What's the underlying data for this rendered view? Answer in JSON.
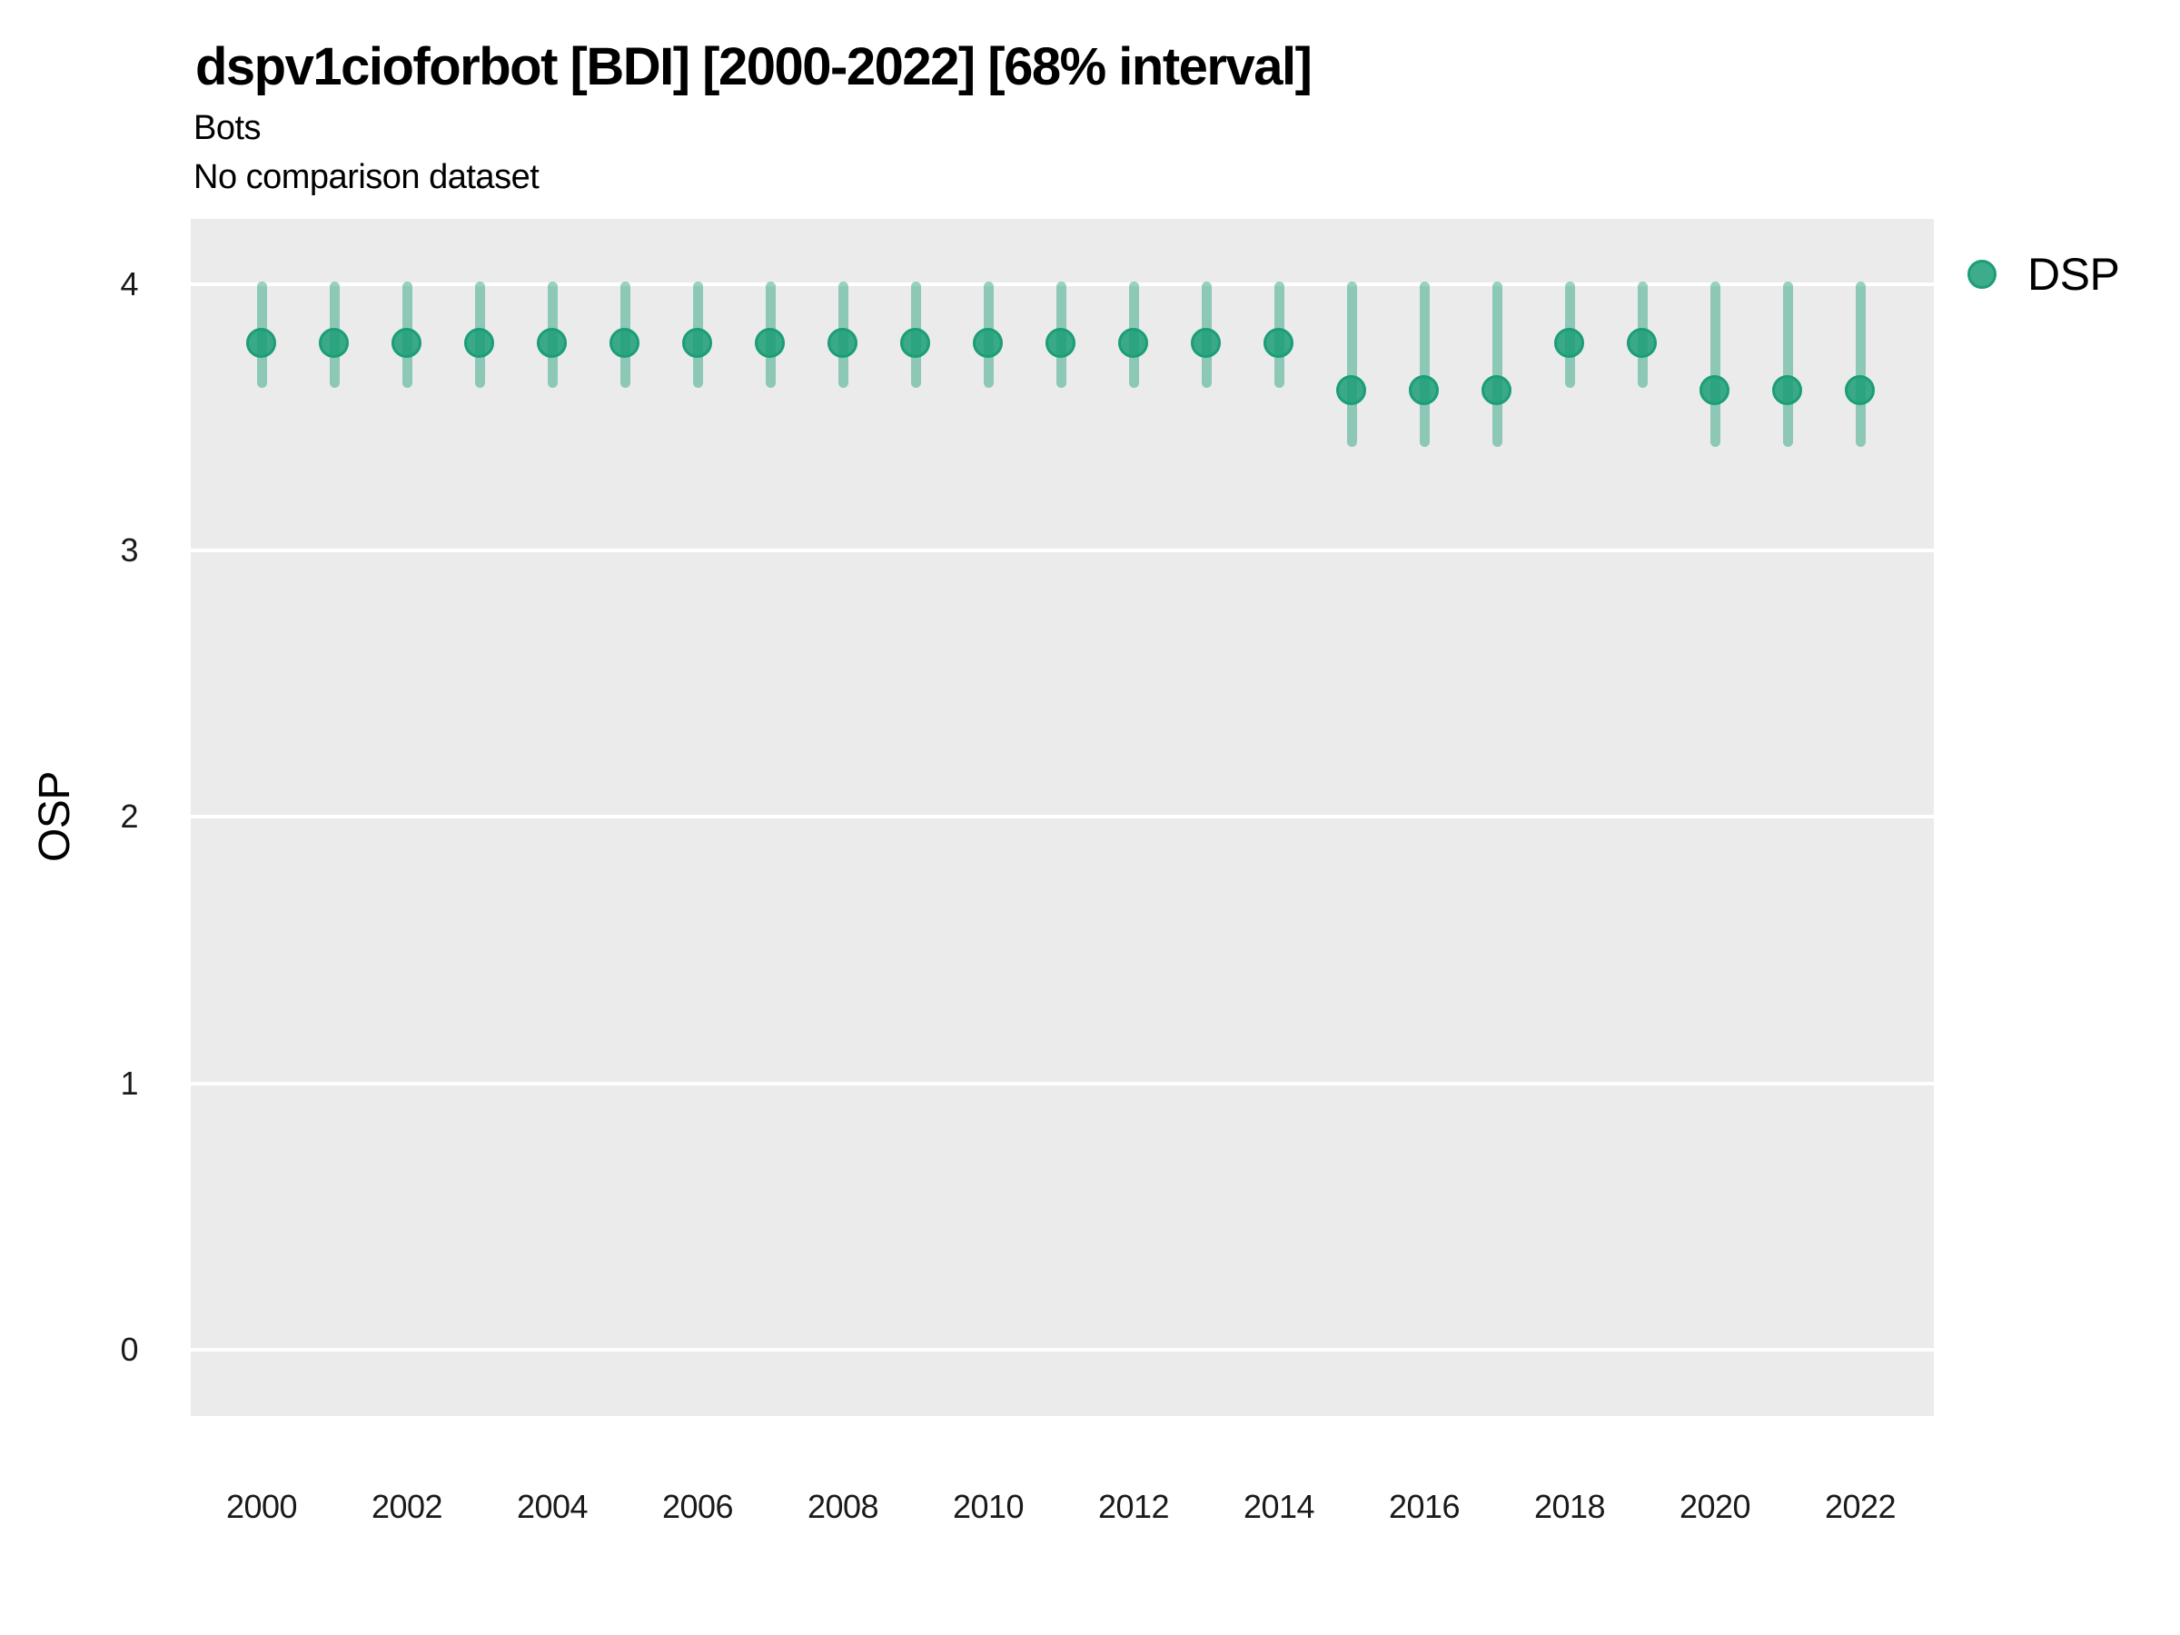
{
  "header": {
    "title": "dspv1cioforbot [BDI] [2000-2022] [68% interval]",
    "subtitle1": "Bots",
    "subtitle2": "No comparison dataset"
  },
  "legend": {
    "label": "DSP",
    "position": "right-top"
  },
  "colors": {
    "series_stroke": "#1B9E77",
    "series_fill": "rgba(27,158,119,0.85)",
    "interval_bar": "rgba(27,158,119,0.45)",
    "panel_background": "#EBEBEB",
    "gridline": "#FFFFFF",
    "text": "#000000",
    "tick_text": "#1a1a1a"
  },
  "chart_data": {
    "type": "pointrange",
    "title": "dspv1cioforbot [BDI] [2000-2022] [68% interval]",
    "subtitle": "Bots",
    "note": "No comparison dataset",
    "interval_level": "68%",
    "xlabel": "",
    "ylabel": "OSP",
    "legend_entries": [
      "DSP"
    ],
    "legend_position": "right",
    "grid": "major-horizontal-only",
    "ylim": [
      -0.2,
      4.25
    ],
    "yticks": [
      0,
      1,
      2,
      3,
      4
    ],
    "xticks": [
      2000,
      2002,
      2004,
      2006,
      2008,
      2010,
      2012,
      2014,
      2016,
      2018,
      2020,
      2022
    ],
    "x": [
      2000,
      2001,
      2002,
      2003,
      2004,
      2005,
      2006,
      2007,
      2008,
      2009,
      2010,
      2011,
      2012,
      2013,
      2014,
      2015,
      2016,
      2017,
      2018,
      2019,
      2020,
      2021,
      2022
    ],
    "series": [
      {
        "name": "DSP",
        "points": [
          3.78,
          3.78,
          3.78,
          3.78,
          3.78,
          3.78,
          3.78,
          3.78,
          3.78,
          3.78,
          3.78,
          3.78,
          3.78,
          3.78,
          3.78,
          3.6,
          3.6,
          3.6,
          3.78,
          3.78,
          3.6,
          3.6,
          3.6
        ],
        "lower": [
          3.62,
          3.62,
          3.62,
          3.62,
          3.62,
          3.62,
          3.62,
          3.62,
          3.62,
          3.62,
          3.62,
          3.62,
          3.62,
          3.62,
          3.62,
          3.4,
          3.4,
          3.4,
          3.62,
          3.62,
          3.4,
          3.4,
          3.4
        ],
        "upper": [
          4.0,
          4.0,
          4.0,
          4.0,
          4.0,
          4.0,
          4.0,
          4.0,
          4.0,
          4.0,
          4.0,
          4.0,
          4.0,
          4.0,
          4.0,
          4.0,
          4.0,
          4.0,
          4.0,
          4.0,
          4.0,
          4.0,
          4.0
        ]
      }
    ]
  }
}
